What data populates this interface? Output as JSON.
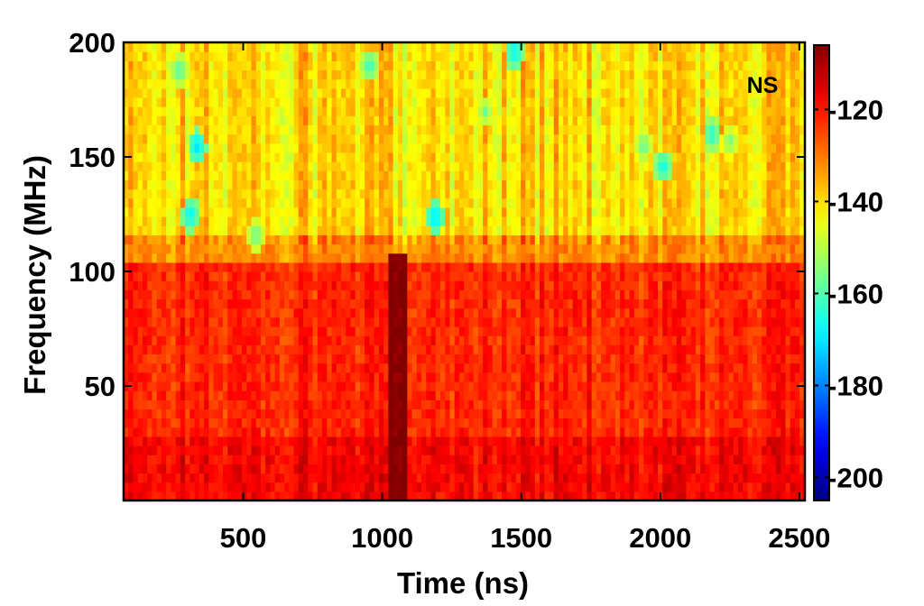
{
  "chart_data": {
    "type": "heatmap",
    "title": "",
    "annotation": "NS",
    "xlabel": "Time (ns)",
    "ylabel": "Frequency (MHz)",
    "xlim": [
      70,
      2520
    ],
    "ylim": [
      0,
      200
    ],
    "xticks": [
      500,
      1000,
      1500,
      2000,
      2500
    ],
    "yticks": [
      50,
      100,
      150,
      200
    ],
    "colorbar": {
      "min": -205,
      "max": -106,
      "ticks": [
        -120,
        -140,
        -160,
        -180,
        -200
      ],
      "colormap": "jet"
    },
    "grid": false,
    "band_levels": [
      {
        "freq_from": 0,
        "freq_to": 30,
        "approx_value": -118
      },
      {
        "freq_from": 30,
        "freq_to": 105,
        "approx_value": -122
      },
      {
        "freq_from": 105,
        "freq_to": 115,
        "approx_value": -132
      },
      {
        "freq_from": 115,
        "freq_to": 200,
        "approx_value": -140
      }
    ],
    "strong_column_time": 1055,
    "strong_column_value": -108,
    "cold_spots": [
      {
        "time": 335,
        "freq": 155,
        "value": -172
      },
      {
        "time": 310,
        "freq": 125,
        "value": -170
      },
      {
        "time": 1190,
        "freq": 124,
        "value": -172
      },
      {
        "time": 1475,
        "freq": 196,
        "value": -170
      },
      {
        "time": 2010,
        "freq": 146,
        "value": -168
      },
      {
        "time": 2185,
        "freq": 160,
        "value": -166
      },
      {
        "time": 955,
        "freq": 190,
        "value": -164
      },
      {
        "time": 270,
        "freq": 188,
        "value": -162
      },
      {
        "time": 545,
        "freq": 116,
        "value": -160
      },
      {
        "time": 1940,
        "freq": 155,
        "value": -160
      },
      {
        "time": 1370,
        "freq": 170,
        "value": -158
      },
      {
        "time": 2250,
        "freq": 157,
        "value": -158
      }
    ]
  }
}
